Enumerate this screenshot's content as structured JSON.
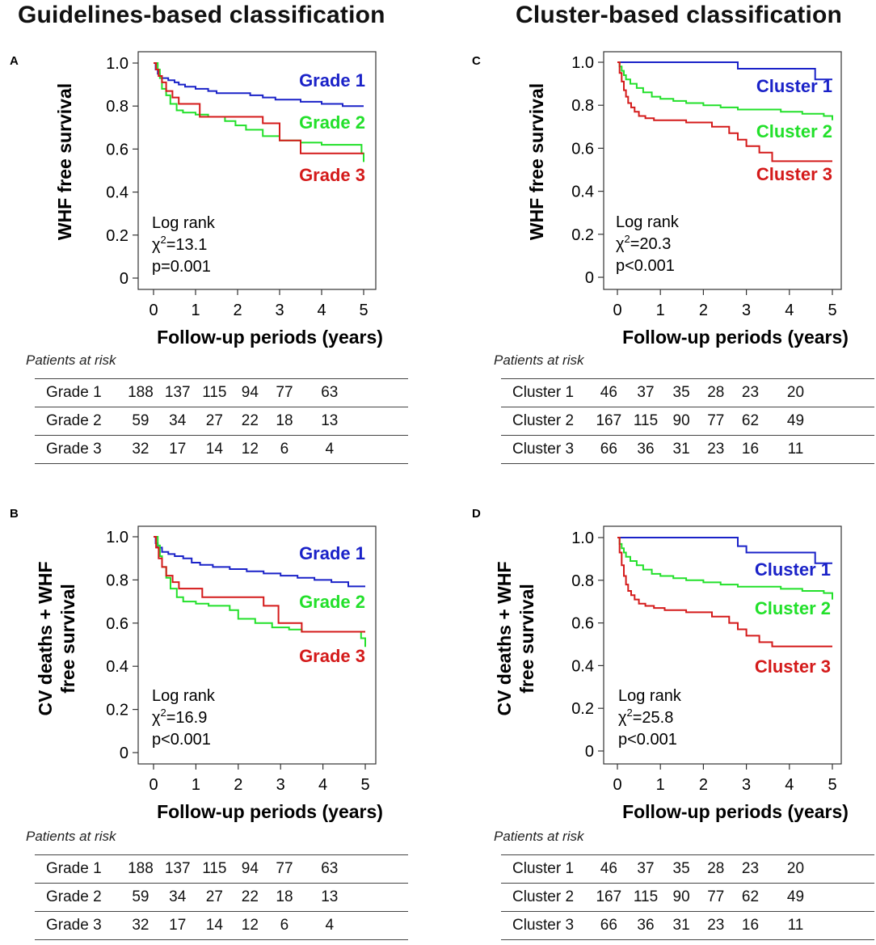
{
  "columns": {
    "left_title": "Guidelines-based classification",
    "right_title": "Cluster-based classification"
  },
  "chart_data": [
    {
      "panel": "A",
      "type": "line",
      "subtype": "kaplan-meier",
      "ylabel": [
        "WHF free survival"
      ],
      "xlabel": "Follow-up periods (years)",
      "xlim": [
        0,
        5
      ],
      "ylim": [
        0,
        1.0
      ],
      "xticks": [
        "0",
        "1",
        "2",
        "3",
        "4",
        "5"
      ],
      "yticks": [
        "0",
        "0.2",
        "0.4",
        "0.6",
        "0.8",
        "1.0"
      ],
      "stats": [
        "Log rank",
        "χ²=13.1",
        "p=0.001"
      ],
      "series": [
        {
          "name": "Grade 1",
          "color": "#1a22c8",
          "x": [
            0,
            0.05,
            0.1,
            0.15,
            0.2,
            0.35,
            0.5,
            0.6,
            0.75,
            1.0,
            1.3,
            1.5,
            2.0,
            2.3,
            2.6,
            2.9,
            3.2,
            3.5,
            4.0,
            4.3,
            4.5,
            5.0
          ],
          "y": [
            1.0,
            0.97,
            0.95,
            0.94,
            0.93,
            0.92,
            0.91,
            0.9,
            0.89,
            0.88,
            0.87,
            0.86,
            0.86,
            0.85,
            0.84,
            0.83,
            0.83,
            0.82,
            0.81,
            0.81,
            0.8,
            0.8
          ]
        },
        {
          "name": "Grade 2",
          "color": "#22e02a",
          "x": [
            0,
            0.1,
            0.15,
            0.2,
            0.3,
            0.4,
            0.55,
            0.7,
            1.0,
            1.3,
            1.7,
            1.95,
            2.2,
            2.6,
            3.0,
            3.5,
            4.0,
            4.5,
            4.95,
            5.0
          ],
          "y": [
            1.0,
            0.97,
            0.93,
            0.88,
            0.85,
            0.81,
            0.78,
            0.77,
            0.76,
            0.75,
            0.73,
            0.71,
            0.69,
            0.66,
            0.64,
            0.63,
            0.62,
            0.62,
            0.58,
            0.54
          ]
        },
        {
          "name": "Grade 3",
          "color": "#d41a1a",
          "x": [
            0,
            0.06,
            0.12,
            0.2,
            0.3,
            0.45,
            0.6,
            1.1,
            1.6,
            2.6,
            3.0,
            3.5,
            4.0,
            5.0
          ],
          "y": [
            1.0,
            0.97,
            0.94,
            0.91,
            0.87,
            0.84,
            0.81,
            0.75,
            0.75,
            0.72,
            0.64,
            0.58,
            0.58,
            0.58
          ]
        }
      ],
      "risk_caption": "Patients at risk",
      "risk_rows": [
        {
          "label": "Grade 1",
          "values": [
            "188",
            "137",
            "115",
            "94",
            "77",
            "63"
          ]
        },
        {
          "label": "Grade 2",
          "values": [
            "59",
            "34",
            "27",
            "22",
            "18",
            "13"
          ]
        },
        {
          "label": "Grade 3",
          "values": [
            "32",
            "17",
            "14",
            "12",
            "6",
            "4"
          ]
        }
      ]
    },
    {
      "panel": "B",
      "type": "line",
      "subtype": "kaplan-meier",
      "ylabel": [
        "CV deaths + WHF",
        "free survival"
      ],
      "xlabel": "Follow-up periods (years)",
      "xlim": [
        0,
        5
      ],
      "ylim": [
        0,
        1.0
      ],
      "xticks": [
        "0",
        "1",
        "2",
        "3",
        "4",
        "5"
      ],
      "yticks": [
        "0",
        "0.2",
        "0.4",
        "0.6",
        "0.8",
        "1.0"
      ],
      "stats": [
        "Log rank",
        "χ²=16.9",
        "p<0.001"
      ],
      "series": [
        {
          "name": "Grade 1",
          "color": "#1a22c8",
          "x": [
            0,
            0.05,
            0.1,
            0.2,
            0.35,
            0.5,
            0.7,
            0.9,
            1.1,
            1.4,
            1.8,
            2.2,
            2.6,
            3.0,
            3.4,
            3.8,
            4.2,
            4.6,
            5.0
          ],
          "y": [
            1.0,
            0.97,
            0.95,
            0.93,
            0.92,
            0.91,
            0.9,
            0.88,
            0.87,
            0.86,
            0.85,
            0.84,
            0.83,
            0.82,
            0.81,
            0.8,
            0.79,
            0.77,
            0.77
          ]
        },
        {
          "name": "Grade 2",
          "color": "#22e02a",
          "x": [
            0,
            0.1,
            0.15,
            0.2,
            0.3,
            0.4,
            0.55,
            0.7,
            1.0,
            1.3,
            1.8,
            2.0,
            2.4,
            2.8,
            3.2,
            3.5,
            4.0,
            4.5,
            4.9,
            5.0
          ],
          "y": [
            1.0,
            0.96,
            0.91,
            0.86,
            0.81,
            0.76,
            0.72,
            0.7,
            0.69,
            0.68,
            0.66,
            0.62,
            0.6,
            0.58,
            0.57,
            0.56,
            0.56,
            0.56,
            0.53,
            0.49
          ]
        },
        {
          "name": "Grade 3",
          "color": "#d41a1a",
          "x": [
            0,
            0.06,
            0.12,
            0.2,
            0.3,
            0.45,
            0.6,
            1.15,
            1.65,
            2.6,
            2.95,
            3.5,
            5.0
          ],
          "y": [
            1.0,
            0.95,
            0.9,
            0.86,
            0.82,
            0.79,
            0.76,
            0.72,
            0.72,
            0.68,
            0.6,
            0.56,
            0.56
          ]
        }
      ],
      "risk_caption": "Patients at risk",
      "risk_rows": [
        {
          "label": "Grade 1",
          "values": [
            "188",
            "137",
            "115",
            "94",
            "77",
            "63"
          ]
        },
        {
          "label": "Grade 2",
          "values": [
            "59",
            "34",
            "27",
            "22",
            "18",
            "13"
          ]
        },
        {
          "label": "Grade 3",
          "values": [
            "32",
            "17",
            "14",
            "12",
            "6",
            "4"
          ]
        }
      ]
    },
    {
      "panel": "C",
      "type": "line",
      "subtype": "kaplan-meier",
      "ylabel": [
        "WHF free survival"
      ],
      "xlabel": "Follow-up periods (years)",
      "xlim": [
        0,
        5
      ],
      "ylim": [
        0,
        1.0
      ],
      "xticks": [
        "0",
        "1",
        "2",
        "3",
        "4",
        "5"
      ],
      "yticks": [
        "0",
        "0.2",
        "0.4",
        "0.6",
        "0.8",
        "1.0"
      ],
      "stats": [
        "Log rank",
        "χ²=20.3",
        "p<0.001"
      ],
      "series": [
        {
          "name": "Cluster 1",
          "color": "#1a22c8",
          "x": [
            0,
            2.8,
            4.6,
            5.0
          ],
          "y": [
            1.0,
            0.97,
            0.92,
            0.92
          ]
        },
        {
          "name": "Cluster 2",
          "color": "#22e02a",
          "x": [
            0,
            0.05,
            0.1,
            0.15,
            0.2,
            0.3,
            0.45,
            0.6,
            0.8,
            1.0,
            1.3,
            1.6,
            2.0,
            2.4,
            2.8,
            3.3,
            3.8,
            4.3,
            4.8,
            5.0
          ],
          "y": [
            1.0,
            0.98,
            0.96,
            0.94,
            0.92,
            0.9,
            0.88,
            0.86,
            0.84,
            0.83,
            0.82,
            0.81,
            0.8,
            0.79,
            0.78,
            0.78,
            0.77,
            0.76,
            0.75,
            0.73
          ]
        },
        {
          "name": "Cluster 3",
          "color": "#d41a1a",
          "x": [
            0,
            0.05,
            0.1,
            0.15,
            0.2,
            0.25,
            0.32,
            0.4,
            0.5,
            0.65,
            0.85,
            1.1,
            1.6,
            2.2,
            2.6,
            2.8,
            3.0,
            3.3,
            3.6,
            5.0
          ],
          "y": [
            1.0,
            0.95,
            0.91,
            0.87,
            0.84,
            0.81,
            0.79,
            0.77,
            0.75,
            0.74,
            0.73,
            0.73,
            0.72,
            0.7,
            0.67,
            0.64,
            0.61,
            0.58,
            0.54,
            0.54
          ]
        }
      ],
      "risk_caption": "Patients at risk",
      "risk_rows": [
        {
          "label": "Cluster 1",
          "values": [
            "46",
            "37",
            "35",
            "28",
            "23",
            "20"
          ]
        },
        {
          "label": "Cluster 2",
          "values": [
            "167",
            "115",
            "90",
            "77",
            "62",
            "49"
          ]
        },
        {
          "label": "Cluster 3",
          "values": [
            "66",
            "36",
            "31",
            "23",
            "16",
            "11"
          ]
        }
      ]
    },
    {
      "panel": "D",
      "type": "line",
      "subtype": "kaplan-meier",
      "ylabel": [
        "CV deaths + WHF",
        "free survival"
      ],
      "xlabel": "Follow-up periods (years)",
      "xlim": [
        0,
        5
      ],
      "ylim": [
        0,
        1.0
      ],
      "xticks": [
        "0",
        "1",
        "2",
        "3",
        "4",
        "5"
      ],
      "yticks": [
        "0",
        "0.2",
        "0.4",
        "0.6",
        "0.8",
        "1.0"
      ],
      "stats": [
        "Log rank",
        "χ²=25.8",
        "p<0.001"
      ],
      "series": [
        {
          "name": "Cluster 1",
          "color": "#1a22c8",
          "x": [
            0,
            2.8,
            3.0,
            4.6,
            5.0
          ],
          "y": [
            1.0,
            0.96,
            0.93,
            0.88,
            0.88
          ]
        },
        {
          "name": "Cluster 2",
          "color": "#22e02a",
          "x": [
            0,
            0.05,
            0.1,
            0.15,
            0.2,
            0.3,
            0.45,
            0.6,
            0.8,
            1.0,
            1.3,
            1.6,
            2.0,
            2.4,
            2.8,
            3.3,
            3.8,
            4.3,
            4.8,
            5.0
          ],
          "y": [
            1.0,
            0.97,
            0.95,
            0.93,
            0.91,
            0.89,
            0.87,
            0.85,
            0.83,
            0.82,
            0.81,
            0.8,
            0.79,
            0.78,
            0.77,
            0.77,
            0.76,
            0.75,
            0.74,
            0.71
          ]
        },
        {
          "name": "Cluster 3",
          "color": "#d41a1a",
          "x": [
            0,
            0.05,
            0.1,
            0.15,
            0.2,
            0.25,
            0.32,
            0.4,
            0.5,
            0.65,
            0.85,
            1.1,
            1.6,
            2.2,
            2.6,
            2.8,
            3.0,
            3.3,
            3.6,
            5.0
          ],
          "y": [
            1.0,
            0.93,
            0.87,
            0.82,
            0.78,
            0.75,
            0.73,
            0.71,
            0.69,
            0.68,
            0.67,
            0.66,
            0.65,
            0.63,
            0.6,
            0.57,
            0.54,
            0.51,
            0.49,
            0.49
          ]
        }
      ],
      "risk_caption": "Patients at risk",
      "risk_rows": [
        {
          "label": "Cluster 1",
          "values": [
            "46",
            "37",
            "35",
            "28",
            "23",
            "20"
          ]
        },
        {
          "label": "Cluster 2",
          "values": [
            "167",
            "115",
            "90",
            "77",
            "62",
            "49"
          ]
        },
        {
          "label": "Cluster 3",
          "values": [
            "66",
            "36",
            "31",
            "23",
            "16",
            "11"
          ]
        }
      ]
    }
  ]
}
